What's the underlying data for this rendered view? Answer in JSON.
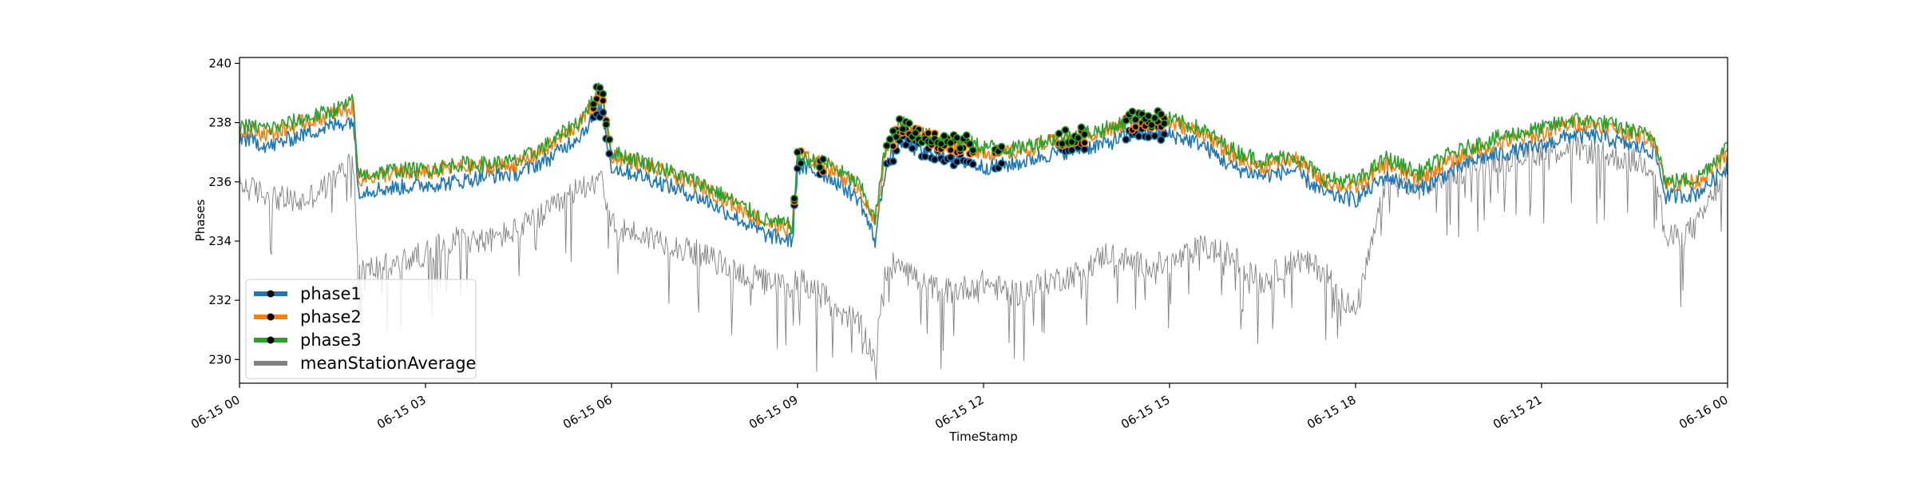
{
  "chart_data": {
    "type": "line",
    "xlabel": "TimeStamp",
    "ylabel": "Phases",
    "xlim": [
      "2021-06-15 00:00",
      "2021-06-16 00:00"
    ],
    "ylim": [
      229.2,
      240.2
    ],
    "x_ticks": [
      "06-15 00",
      "06-15 03",
      "06-15 06",
      "06-15 09",
      "06-15 12",
      "06-15 15",
      "06-15 18",
      "06-15 21",
      "06-16 00"
    ],
    "y_ticks": [
      230,
      232,
      234,
      236,
      238,
      240
    ],
    "legend_position": "lower-left",
    "grid": false,
    "series": [
      {
        "name": "phase1",
        "color": "#1f77b4",
        "marker": "circle-black",
        "points": [
          [
            "06-15 00:00",
            237.5
          ],
          [
            "06-15 00:30",
            237.2
          ],
          [
            "06-15 01:00",
            237.6
          ],
          [
            "06-15 01:30",
            237.9
          ],
          [
            "06-15 01:50",
            238.1
          ],
          [
            "06-15 01:55",
            235.7
          ],
          [
            "06-15 02:30",
            235.8
          ],
          [
            "06-15 03:00",
            235.9
          ],
          [
            "06-15 03:30",
            236.0
          ],
          [
            "06-15 04:00",
            236.2
          ],
          [
            "06-15 04:30",
            236.3
          ],
          [
            "06-15 05:00",
            236.8
          ],
          [
            "06-15 05:30",
            237.6
          ],
          [
            "06-15 05:50",
            238.5
          ],
          [
            "06-15 06:00",
            236.5
          ],
          [
            "06-15 06:30",
            236.2
          ],
          [
            "06-15 07:00",
            235.8
          ],
          [
            "06-15 07:30",
            235.4
          ],
          [
            "06-15 08:00",
            234.8
          ],
          [
            "06-15 08:30",
            234.2
          ],
          [
            "06-15 08:55",
            234.0
          ],
          [
            "06-15 09:00",
            236.5
          ],
          [
            "06-15 09:30",
            236.2
          ],
          [
            "06-15 10:00",
            235.4
          ],
          [
            "06-15 10:15",
            234.0
          ],
          [
            "06-15 10:25",
            236.5
          ],
          [
            "06-15 10:40",
            237.4
          ],
          [
            "06-15 11:00",
            237.0
          ],
          [
            "06-15 11:30",
            236.8
          ],
          [
            "06-15 12:00",
            236.5
          ],
          [
            "06-15 12:30",
            236.6
          ],
          [
            "06-15 13:00",
            236.9
          ],
          [
            "06-15 13:30",
            237.1
          ],
          [
            "06-15 14:00",
            237.3
          ],
          [
            "06-15 14:30",
            237.7
          ],
          [
            "06-15 15:00",
            237.6
          ],
          [
            "06-15 15:30",
            237.3
          ],
          [
            "06-15 16:00",
            236.5
          ],
          [
            "06-15 16:30",
            236.2
          ],
          [
            "06-15 17:00",
            236.4
          ],
          [
            "06-15 17:30",
            235.6
          ],
          [
            "06-15 18:00",
            235.4
          ],
          [
            "06-15 18:30",
            236.2
          ],
          [
            "06-15 19:00",
            235.7
          ],
          [
            "06-15 19:30",
            236.3
          ],
          [
            "06-15 20:00",
            236.8
          ],
          [
            "06-15 20:30",
            237.0
          ],
          [
            "06-15 21:00",
            237.2
          ],
          [
            "06-15 21:30",
            237.6
          ],
          [
            "06-15 22:00",
            237.5
          ],
          [
            "06-15 22:30",
            237.2
          ],
          [
            "06-15 22:50",
            237.0
          ],
          [
            "06-15 23:00",
            235.5
          ],
          [
            "06-15 23:30",
            235.6
          ],
          [
            "06-16 00:00",
            236.5
          ]
        ]
      },
      {
        "name": "phase2",
        "color": "#ff7f0e",
        "marker": "circle-black",
        "points": [
          [
            "06-15 00:00",
            237.8
          ],
          [
            "06-15 00:30",
            237.6
          ],
          [
            "06-15 01:00",
            238.0
          ],
          [
            "06-15 01:30",
            238.3
          ],
          [
            "06-15 01:50",
            238.5
          ],
          [
            "06-15 01:55",
            236.1
          ],
          [
            "06-15 02:30",
            236.3
          ],
          [
            "06-15 03:00",
            236.3
          ],
          [
            "06-15 03:30",
            236.5
          ],
          [
            "06-15 04:00",
            236.5
          ],
          [
            "06-15 04:30",
            236.6
          ],
          [
            "06-15 05:00",
            237.2
          ],
          [
            "06-15 05:30",
            238.0
          ],
          [
            "06-15 05:50",
            239.0
          ],
          [
            "06-15 06:00",
            236.9
          ],
          [
            "06-15 06:30",
            236.6
          ],
          [
            "06-15 07:00",
            236.2
          ],
          [
            "06-15 07:30",
            235.8
          ],
          [
            "06-15 08:00",
            235.2
          ],
          [
            "06-15 08:30",
            234.6
          ],
          [
            "06-15 08:55",
            234.4
          ],
          [
            "06-15 09:00",
            236.9
          ],
          [
            "06-15 09:30",
            236.5
          ],
          [
            "06-15 10:00",
            235.8
          ],
          [
            "06-15 10:15",
            234.5
          ],
          [
            "06-15 10:25",
            237.0
          ],
          [
            "06-15 10:40",
            237.9
          ],
          [
            "06-15 11:00",
            237.5
          ],
          [
            "06-15 11:30",
            237.3
          ],
          [
            "06-15 12:00",
            237.0
          ],
          [
            "06-15 12:30",
            237.0
          ],
          [
            "06-15 13:00",
            237.3
          ],
          [
            "06-15 13:30",
            237.5
          ],
          [
            "06-15 14:00",
            237.7
          ],
          [
            "06-15 14:30",
            238.1
          ],
          [
            "06-15 15:00",
            238.0
          ],
          [
            "06-15 15:30",
            237.7
          ],
          [
            "06-15 16:00",
            236.9
          ],
          [
            "06-15 16:30",
            236.5
          ],
          [
            "06-15 17:00",
            236.8
          ],
          [
            "06-15 17:30",
            236.0
          ],
          [
            "06-15 18:00",
            235.8
          ],
          [
            "06-15 18:30",
            236.6
          ],
          [
            "06-15 19:00",
            236.1
          ],
          [
            "06-15 19:30",
            236.7
          ],
          [
            "06-15 20:00",
            237.1
          ],
          [
            "06-15 20:30",
            237.4
          ],
          [
            "06-15 21:00",
            237.6
          ],
          [
            "06-15 21:30",
            238.0
          ],
          [
            "06-15 22:00",
            237.9
          ],
          [
            "06-15 22:30",
            237.6
          ],
          [
            "06-15 22:50",
            237.4
          ],
          [
            "06-15 23:00",
            235.9
          ],
          [
            "06-15 23:30",
            236.0
          ],
          [
            "06-16 00:00",
            236.9
          ]
        ]
      },
      {
        "name": "phase3",
        "color": "#2ca02c",
        "marker": "circle-black",
        "points": [
          [
            "06-15 00:00",
            237.9
          ],
          [
            "06-15 00:30",
            237.8
          ],
          [
            "06-15 01:00",
            238.1
          ],
          [
            "06-15 01:30",
            238.4
          ],
          [
            "06-15 01:50",
            238.7
          ],
          [
            "06-15 01:55",
            236.2
          ],
          [
            "06-15 02:30",
            236.4
          ],
          [
            "06-15 03:00",
            236.4
          ],
          [
            "06-15 03:30",
            236.6
          ],
          [
            "06-15 04:00",
            236.6
          ],
          [
            "06-15 04:30",
            236.7
          ],
          [
            "06-15 05:00",
            237.3
          ],
          [
            "06-15 05:30",
            238.1
          ],
          [
            "06-15 05:50",
            239.2
          ],
          [
            "06-15 06:00",
            237.0
          ],
          [
            "06-15 06:30",
            236.7
          ],
          [
            "06-15 07:00",
            236.3
          ],
          [
            "06-15 07:30",
            235.9
          ],
          [
            "06-15 08:00",
            235.3
          ],
          [
            "06-15 08:30",
            234.7
          ],
          [
            "06-15 08:55",
            234.5
          ],
          [
            "06-15 09:00",
            236.8
          ],
          [
            "06-15 09:30",
            236.6
          ],
          [
            "06-15 10:00",
            235.9
          ],
          [
            "06-15 10:15",
            234.7
          ],
          [
            "06-15 10:25",
            237.2
          ],
          [
            "06-15 10:40",
            238.0
          ],
          [
            "06-15 11:00",
            237.6
          ],
          [
            "06-15 11:30",
            237.4
          ],
          [
            "06-15 12:00",
            237.2
          ],
          [
            "06-15 12:30",
            237.1
          ],
          [
            "06-15 13:00",
            237.4
          ],
          [
            "06-15 13:30",
            237.6
          ],
          [
            "06-15 14:00",
            237.8
          ],
          [
            "06-15 14:30",
            238.2
          ],
          [
            "06-15 15:00",
            238.1
          ],
          [
            "06-15 15:30",
            237.8
          ],
          [
            "06-15 16:00",
            237.1
          ],
          [
            "06-15 16:30",
            236.7
          ],
          [
            "06-15 17:00",
            236.9
          ],
          [
            "06-15 17:30",
            236.1
          ],
          [
            "06-15 18:00",
            236.0
          ],
          [
            "06-15 18:30",
            236.8
          ],
          [
            "06-15 19:00",
            236.3
          ],
          [
            "06-15 19:30",
            236.9
          ],
          [
            "06-15 20:00",
            237.3
          ],
          [
            "06-15 20:30",
            237.6
          ],
          [
            "06-15 21:00",
            237.8
          ],
          [
            "06-15 21:30",
            238.1
          ],
          [
            "06-15 22:00",
            238.0
          ],
          [
            "06-15 22:30",
            237.7
          ],
          [
            "06-15 22:50",
            237.5
          ],
          [
            "06-15 23:00",
            236.0
          ],
          [
            "06-15 23:30",
            236.1
          ],
          [
            "06-16 00:00",
            237.2
          ]
        ]
      },
      {
        "name": "meanStationAverage",
        "color": "#808080",
        "points": [
          [
            "06-15 00:00",
            235.9
          ],
          [
            "06-15 00:30",
            235.5
          ],
          [
            "06-15 01:00",
            235.3
          ],
          [
            "06-15 01:30",
            236.0
          ],
          [
            "06-15 01:50",
            236.8
          ],
          [
            "06-15 01:55",
            233.0
          ],
          [
            "06-15 02:30",
            233.2
          ],
          [
            "06-15 03:00",
            233.6
          ],
          [
            "06-15 03:30",
            234.1
          ],
          [
            "06-15 04:00",
            234.0
          ],
          [
            "06-15 04:30",
            234.4
          ],
          [
            "06-15 05:00",
            235.0
          ],
          [
            "06-15 05:30",
            235.8
          ],
          [
            "06-15 05:50",
            236.3
          ],
          [
            "06-15 06:00",
            234.5
          ],
          [
            "06-15 06:30",
            234.2
          ],
          [
            "06-15 07:00",
            233.9
          ],
          [
            "06-15 07:30",
            233.5
          ],
          [
            "06-15 08:00",
            233.0
          ],
          [
            "06-15 08:30",
            232.6
          ],
          [
            "06-15 08:55",
            232.4
          ],
          [
            "06-15 09:00",
            232.8
          ],
          [
            "06-15 09:30",
            232.0
          ],
          [
            "06-15 10:00",
            231.2
          ],
          [
            "06-15 10:15",
            230.0
          ],
          [
            "06-15 10:25",
            233.0
          ],
          [
            "06-15 10:40",
            233.4
          ],
          [
            "06-15 11:00",
            232.5
          ],
          [
            "06-15 11:30",
            232.3
          ],
          [
            "06-15 12:00",
            232.6
          ],
          [
            "06-15 12:30",
            232.2
          ],
          [
            "06-15 13:00",
            232.6
          ],
          [
            "06-15 13:30",
            232.9
          ],
          [
            "06-15 14:00",
            233.6
          ],
          [
            "06-15 14:30",
            233.2
          ],
          [
            "06-15 15:00",
            233.2
          ],
          [
            "06-15 15:30",
            233.8
          ],
          [
            "06-15 16:00",
            233.5
          ],
          [
            "06-15 16:30",
            232.6
          ],
          [
            "06-15 17:00",
            233.4
          ],
          [
            "06-15 17:30",
            233.0
          ],
          [
            "06-15 18:00",
            231.5
          ],
          [
            "06-15 18:30",
            236.0
          ],
          [
            "06-15 19:00",
            235.8
          ],
          [
            "06-15 19:30",
            236.2
          ],
          [
            "06-15 20:00",
            236.6
          ],
          [
            "06-15 20:30",
            236.8
          ],
          [
            "06-15 21:00",
            237.0
          ],
          [
            "06-15 21:30",
            237.2
          ],
          [
            "06-15 22:00",
            236.9
          ],
          [
            "06-15 22:30",
            236.7
          ],
          [
            "06-15 22:50",
            236.5
          ],
          [
            "06-15 23:00",
            234.0
          ],
          [
            "06-15 23:30",
            234.5
          ],
          [
            "06-16 00:00",
            236.5
          ]
        ]
      }
    ],
    "highlight_ranges": [
      [
        "06-15 05:40",
        "06-15 06:00"
      ],
      [
        "06-15 08:55",
        "06-15 09:05"
      ],
      [
        "06-15 09:20",
        "06-15 09:25"
      ],
      [
        "06-15 10:25",
        "06-15 11:50"
      ],
      [
        "06-15 12:10",
        "06-15 12:20"
      ],
      [
        "06-15 13:10",
        "06-15 13:40"
      ],
      [
        "06-15 14:15",
        "06-15 14:55"
      ]
    ]
  }
}
